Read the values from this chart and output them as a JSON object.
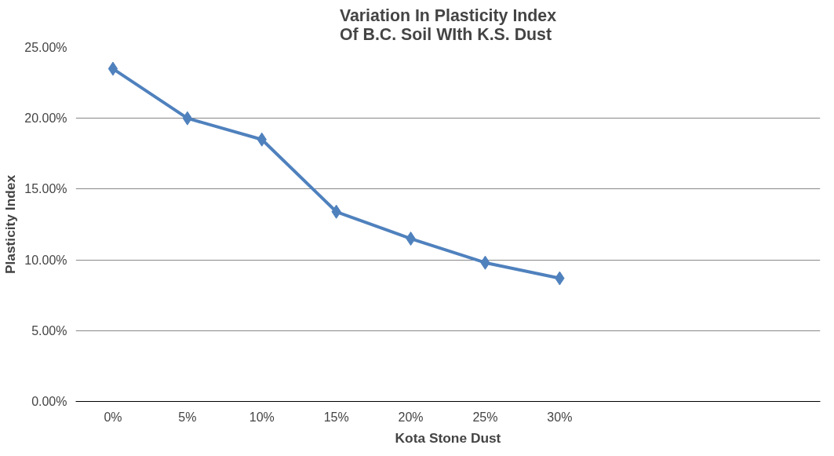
{
  "chart_data": {
    "type": "line",
    "title": "Variation In Plasticity Index\nOf B.C. Soil WIth K.S. Dust",
    "xlabel": "Kota Stone Dust",
    "ylabel": "Plasticity Index",
    "categories": [
      "0%",
      "5%",
      "10%",
      "15%",
      "20%",
      "25%",
      "30%",
      null,
      null,
      null
    ],
    "series": [
      {
        "color": "#4f81bd",
        "values": [
          23.5,
          20.0,
          18.5,
          13.4,
          11.5,
          9.8,
          8.7,
          null,
          null,
          null
        ]
      }
    ],
    "ylim": [
      0,
      25
    ],
    "yticks": [
      {
        "value": 0,
        "label": "0.00%"
      },
      {
        "value": 5,
        "label": "5.00%"
      },
      {
        "value": 10,
        "label": "10.00%"
      },
      {
        "value": 15,
        "label": "15.00%"
      },
      {
        "value": 20,
        "label": "20.00%"
      },
      {
        "value": 25,
        "label": "25.00%"
      }
    ],
    "grid": "y",
    "marker": "diamond",
    "line_style": "solid"
  }
}
